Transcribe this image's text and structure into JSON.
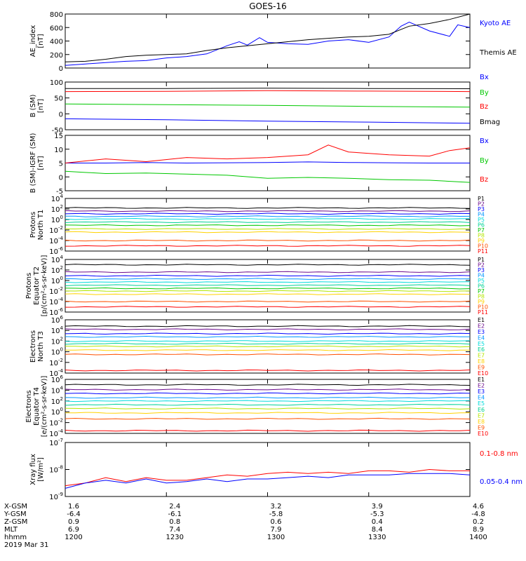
{
  "title": "GOES-16",
  "colors": {
    "black": "#000000",
    "blue": "#0000ff",
    "green": "#00c800",
    "red": "#ff0000",
    "p_channels": [
      "#000000",
      "#6b0a8c",
      "#0000ff",
      "#0096ff",
      "#00dcdc",
      "#00d296",
      "#00c800",
      "#b4e600",
      "#ffd200",
      "#ff5000",
      "#ff0000"
    ],
    "e_channels": [
      "#000000",
      "#6b0a8c",
      "#0000ff",
      "#0096ff",
      "#00dcdc",
      "#00d296",
      "#b4e600",
      "#ffd200",
      "#ff5000",
      "#ff0000"
    ]
  },
  "chart_data": [
    {
      "type": "line",
      "ylabel_lines": [
        "AE_index",
        "[nT]"
      ],
      "ylim": [
        0,
        800
      ],
      "yticks": [
        "0",
        "200",
        "400",
        "600",
        "800"
      ],
      "series": [
        {
          "name": "Kyoto AE",
          "color": "#0000ff",
          "x": [
            0,
            0.05,
            0.1,
            0.15,
            0.2,
            0.25,
            0.3,
            0.35,
            0.4,
            0.43,
            0.45,
            0.48,
            0.5,
            0.55,
            0.6,
            0.65,
            0.7,
            0.75,
            0.8,
            0.83,
            0.85,
            0.9,
            0.95,
            0.97,
            1.0
          ],
          "y": [
            40,
            60,
            80,
            100,
            110,
            150,
            170,
            210,
            330,
            390,
            340,
            450,
            380,
            360,
            350,
            400,
            420,
            380,
            460,
            620,
            680,
            550,
            470,
            640,
            600
          ]
        },
        {
          "name": "Themis AE",
          "color": "#000000",
          "x": [
            0,
            0.05,
            0.1,
            0.15,
            0.2,
            0.25,
            0.3,
            0.35,
            0.4,
            0.45,
            0.5,
            0.55,
            0.6,
            0.65,
            0.7,
            0.75,
            0.8,
            0.85,
            0.9,
            0.95,
            1.0
          ],
          "y": [
            90,
            100,
            130,
            170,
            190,
            200,
            210,
            260,
            300,
            330,
            360,
            390,
            420,
            440,
            460,
            470,
            500,
            620,
            660,
            720,
            800
          ]
        }
      ]
    },
    {
      "type": "line",
      "ylabel_lines": [
        "B (SM)",
        "[nT]"
      ],
      "ylim": [
        -60,
        140
      ],
      "yticks": [
        "-50",
        "0",
        "50",
        "100"
      ],
      "series": [
        {
          "name": "Bx",
          "color": "#0000ff",
          "x": [
            0,
            0.25,
            0.5,
            0.75,
            1.0
          ],
          "y": [
            -14,
            -18,
            -24,
            -28,
            -33
          ]
        },
        {
          "name": "By",
          "color": "#00c800",
          "x": [
            0,
            0.25,
            0.5,
            0.75,
            1.0
          ],
          "y": [
            48,
            45,
            42,
            38,
            35
          ]
        },
        {
          "name": "Bz",
          "color": "#ff0000",
          "x": [
            0,
            0.25,
            0.5,
            0.75,
            1.0
          ],
          "y": [
            100,
            101,
            104,
            102,
            100
          ]
        },
        {
          "name": "Bmag",
          "color": "#000000",
          "x": [
            0,
            0.25,
            0.5,
            0.75,
            1.0
          ],
          "y": [
            113,
            113,
            114,
            113,
            112
          ]
        }
      ]
    },
    {
      "type": "line",
      "ylabel_lines": [
        "B (SM)-IGRF (SM)",
        "[nT]"
      ],
      "ylim": [
        -5,
        15
      ],
      "yticks": [
        "-5",
        "0",
        "5",
        "10",
        "15"
      ],
      "series": [
        {
          "name": "Bx",
          "color": "#0000ff",
          "x": [
            0,
            0.1,
            0.2,
            0.3,
            0.4,
            0.5,
            0.6,
            0.7,
            0.8,
            0.9,
            1.0
          ],
          "y": [
            5,
            5,
            5.2,
            5,
            5.1,
            5.2,
            5.4,
            5.2,
            5.1,
            5,
            5
          ]
        },
        {
          "name": "By",
          "color": "#00c800",
          "x": [
            0,
            0.1,
            0.2,
            0.3,
            0.4,
            0.5,
            0.6,
            0.7,
            0.8,
            0.9,
            1.0
          ],
          "y": [
            2,
            1.2,
            1.4,
            1,
            0.6,
            -0.5,
            -0.2,
            -0.5,
            -1,
            -1.2,
            -2
          ]
        },
        {
          "name": "Bz",
          "color": "#ff0000",
          "x": [
            0,
            0.1,
            0.2,
            0.3,
            0.4,
            0.5,
            0.6,
            0.65,
            0.7,
            0.8,
            0.9,
            0.95,
            1.0
          ],
          "y": [
            5,
            6.5,
            5.5,
            7,
            6.5,
            7,
            8,
            11.5,
            9,
            8,
            7.5,
            9.5,
            10.5
          ]
        }
      ]
    },
    {
      "type": "line",
      "scale": "log",
      "ylabel_lines": [
        "Protons",
        "North T1"
      ],
      "ylim": [
        -6,
        4
      ],
      "yticks": [
        "10^-6",
        "10^-4",
        "10^-2",
        "10^0",
        "10^2",
        "10^4"
      ],
      "labels": [
        "P1",
        "P2",
        "P3",
        "P4",
        "P5",
        "P6",
        "P7",
        "P8",
        "P9",
        "P10",
        "P11"
      ],
      "levels": [
        2.2,
        1.6,
        1.1,
        0.6,
        0.1,
        -0.5,
        -1.1,
        -1.8,
        -2.4,
        -4,
        -5
      ]
    },
    {
      "type": "line",
      "scale": "log",
      "ylabel_lines": [
        "Protons",
        "Equator T2",
        "[p/(cm²-s-sr-keV)]"
      ],
      "ylim": [
        -6,
        4
      ],
      "yticks": [
        "10^-6",
        "10^-4",
        "10^-2",
        "10^0",
        "10^2",
        "10^4"
      ],
      "labels": [
        "P1",
        "P2",
        "P3",
        "P4",
        "P5",
        "P6",
        "P7",
        "P8",
        "P9",
        "P10",
        "P11"
      ],
      "levels": [
        3,
        1.6,
        0.9,
        0.3,
        -0.3,
        -0.9,
        -1.5,
        -2,
        -2.6,
        -4,
        -5
      ]
    },
    {
      "type": "line",
      "scale": "log",
      "ylabel_lines": [
        "Electrons",
        "North T3"
      ],
      "ylim": [
        -4,
        6
      ],
      "yticks": [
        "10^-4",
        "10^-2",
        "10^0",
        "10^2",
        "10^4",
        "10^6"
      ],
      "labels": [
        "E1",
        "E2",
        "E3",
        "E4",
        "E5",
        "E6",
        "E7",
        "E8",
        "E9",
        "E10"
      ],
      "levels": [
        4.8,
        4.2,
        3.4,
        2.8,
        2,
        1.5,
        1,
        0.3,
        -0.5,
        -3.5
      ]
    },
    {
      "type": "line",
      "scale": "log",
      "ylabel_lines": [
        "Electrons",
        "Equator T4",
        "[e/(cm²-s-sr-keV)]"
      ],
      "ylim": [
        -4,
        6
      ],
      "yticks": [
        "10^-4",
        "10^-2",
        "10^0",
        "10^2",
        "10^4",
        "10^6"
      ],
      "labels": [
        "E1",
        "E2",
        "E3",
        "E4",
        "E5",
        "E6",
        "E7",
        "E8",
        "E9",
        "E10"
      ],
      "levels": [
        5,
        4.1,
        3.4,
        2.6,
        2,
        1.3,
        0.6,
        -0.2,
        -1.3,
        -3.5
      ]
    },
    {
      "type": "line",
      "scale": "log",
      "ylabel_lines": [
        "Xray flux",
        "[W/m²]"
      ],
      "ylim": [
        -9,
        -7
      ],
      "yticks": [
        "10^-9",
        "10^-8",
        "10^-7"
      ],
      "series": [
        {
          "name": "0.1-0.8 nm",
          "color": "#ff0000",
          "x": [
            0,
            0.05,
            0.1,
            0.15,
            0.2,
            0.25,
            0.3,
            0.35,
            0.4,
            0.45,
            0.5,
            0.55,
            0.6,
            0.65,
            0.7,
            0.75,
            0.8,
            0.85,
            0.9,
            0.95,
            1.0
          ],
          "y": [
            -8.6,
            -8.5,
            -8.3,
            -8.45,
            -8.3,
            -8.4,
            -8.4,
            -8.3,
            -8.2,
            -8.25,
            -8.15,
            -8.1,
            -8.15,
            -8.1,
            -8.15,
            -8.05,
            -8.05,
            -8.1,
            -8,
            -8.05,
            -8.05
          ]
        },
        {
          "name": "0.05-0.4 nm",
          "color": "#0000ff",
          "x": [
            0,
            0.05,
            0.1,
            0.15,
            0.2,
            0.25,
            0.3,
            0.35,
            0.4,
            0.45,
            0.5,
            0.55,
            0.6,
            0.65,
            0.7,
            0.75,
            0.8,
            0.85,
            0.9,
            0.95,
            1.0
          ],
          "y": [
            -8.7,
            -8.5,
            -8.4,
            -8.5,
            -8.35,
            -8.5,
            -8.45,
            -8.35,
            -8.45,
            -8.35,
            -8.35,
            -8.3,
            -8.25,
            -8.3,
            -8.2,
            -8.2,
            -8.2,
            -8.15,
            -8.15,
            -8.15,
            -8.2
          ]
        }
      ]
    }
  ],
  "footer": {
    "labels": [
      "X-GSM",
      "Y-GSM",
      "Z-GSM",
      "MLT",
      "hhmm",
      "2019 Mar 31"
    ],
    "columns": [
      [
        "1.6",
        "-6.4",
        "0.9",
        "6.9",
        "1200"
      ],
      [
        "2.4",
        "-6.1",
        "0.8",
        "7.4",
        "1230"
      ],
      [
        "3.2",
        "-5.8",
        "0.6",
        "7.9",
        "1300"
      ],
      [
        "3.9",
        "-5.3",
        "0.4",
        "8.4",
        "1330"
      ],
      [
        "4.6",
        "-4.8",
        "0.2",
        "8.9",
        "1400"
      ]
    ]
  }
}
